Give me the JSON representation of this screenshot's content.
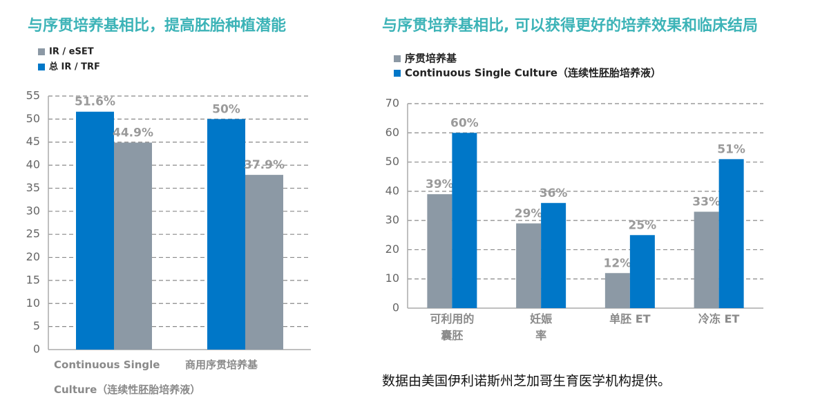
{
  "chart_data": [
    {
      "type": "bar",
      "title": "与序贯培养基相比，提高胚胎种植潜能",
      "categories": [
        "Continuous Single\nCulture（连续性胚胎培养液）",
        "商用序贯培养基"
      ],
      "series": [
        {
          "name": "IR / eSET",
          "color": "#8c99a5",
          "values": [
            44.9,
            37.9
          ],
          "value_labels": [
            "44.9%",
            "37.9%"
          ]
        },
        {
          "name": "总 IR / TRF",
          "color": "#0077c8",
          "values": [
            51.6,
            50
          ],
          "value_labels": [
            "51.6%",
            "50%"
          ]
        }
      ],
      "ylim": [
        0,
        55
      ],
      "yticks": [
        0,
        5,
        10,
        15,
        20,
        25,
        30,
        35,
        40,
        45,
        50,
        55
      ],
      "grid": true,
      "legend": "upper left"
    },
    {
      "type": "bar",
      "title": "与序贯培养基相比, 可以获得更好的培养效果和临床结局",
      "categories": [
        "可利用的\n囊胚",
        "妊娠\n率",
        "单胚 ET",
        "冷冻 ET"
      ],
      "series": [
        {
          "name": "序贯培养基",
          "color": "#8c99a5",
          "values": [
            39,
            29,
            12,
            33
          ],
          "value_labels": [
            "39%",
            "29%",
            "12%",
            "33%"
          ]
        },
        {
          "name": "Continuous Single Culture（连续性胚胎培养液）",
          "color": "#0077c8",
          "values": [
            60,
            36,
            25,
            51
          ],
          "value_labels": [
            "60%",
            "36%",
            "25%",
            "51%"
          ]
        }
      ],
      "ylim": [
        0,
        70
      ],
      "yticks": [
        0,
        10,
        20,
        30,
        40,
        50,
        60,
        70
      ],
      "grid": true,
      "legend": "upper left"
    }
  ],
  "footnote": "数据由美国伊利诺斯州芝加哥生育医学机构提供。"
}
